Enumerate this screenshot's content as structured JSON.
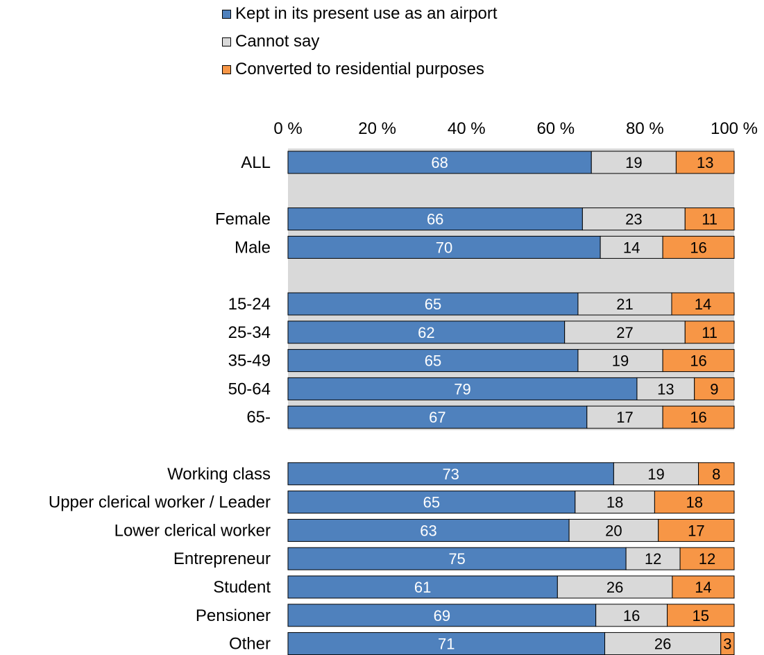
{
  "chart_data": {
    "type": "bar",
    "orientation": "horizontal",
    "stacked": true,
    "title": "",
    "xlabel": "",
    "ylabel": "",
    "xlim": [
      0,
      100
    ],
    "x_ticks": [
      "0 %",
      "20 %",
      "40 %",
      "60 %",
      "80 %",
      "100 %"
    ],
    "legend_position": "top",
    "categories": [
      "ALL",
      "",
      "Female",
      "Male",
      "",
      "15-24",
      "25-34",
      "35-49",
      "50-64",
      "65-",
      "",
      "Working class",
      "Upper clerical worker / Leader",
      "Lower clerical worker",
      "Entrepreneur",
      "Student",
      "Pensioner",
      "Other"
    ],
    "series": [
      {
        "name": "Kept in its present use as an airport",
        "color": "#4f81bd",
        "label_color": "#ffffff",
        "values": [
          68,
          null,
          66,
          70,
          null,
          65,
          62,
          65,
          79,
          67,
          null,
          73,
          65,
          63,
          75,
          61,
          69,
          71
        ]
      },
      {
        "name": "Cannot say",
        "color": "#d9d9d9",
        "label_color": "#000000",
        "values": [
          19,
          null,
          23,
          14,
          null,
          21,
          27,
          19,
          13,
          17,
          null,
          19,
          18,
          20,
          12,
          26,
          16,
          26
        ]
      },
      {
        "name": "Converted to residential purposes",
        "color": "#f79646",
        "label_color": "#000000",
        "values": [
          13,
          null,
          11,
          16,
          null,
          14,
          11,
          16,
          9,
          16,
          null,
          8,
          18,
          17,
          12,
          14,
          15,
          3
        ]
      }
    ],
    "plot_background": "#d9d9d9"
  }
}
